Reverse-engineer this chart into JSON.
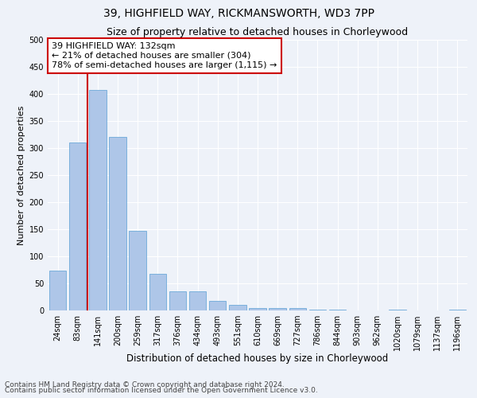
{
  "title1": "39, HIGHFIELD WAY, RICKMANSWORTH, WD3 7PP",
  "title2": "Size of property relative to detached houses in Chorleywood",
  "xlabel": "Distribution of detached houses by size in Chorleywood",
  "ylabel": "Number of detached properties",
  "bar_labels": [
    "24sqm",
    "83sqm",
    "141sqm",
    "200sqm",
    "259sqm",
    "317sqm",
    "376sqm",
    "434sqm",
    "493sqm",
    "551sqm",
    "610sqm",
    "669sqm",
    "727sqm",
    "786sqm",
    "844sqm",
    "903sqm",
    "962sqm",
    "1020sqm",
    "1079sqm",
    "1137sqm",
    "1196sqm"
  ],
  "bar_values": [
    73,
    310,
    407,
    320,
    147,
    68,
    35,
    35,
    18,
    11,
    5,
    5,
    5,
    1,
    1,
    0,
    0,
    2,
    0,
    0,
    2
  ],
  "bar_color": "#aec6e8",
  "bar_edge_color": "#5a9fd4",
  "property_line_x": 2,
  "annotation_text": "39 HIGHFIELD WAY: 132sqm\n← 21% of detached houses are smaller (304)\n78% of semi-detached houses are larger (1,115) →",
  "annotation_box_color": "#ffffff",
  "annotation_box_edge": "#cc0000",
  "vline_color": "#cc0000",
  "ylim": [
    0,
    500
  ],
  "yticks": [
    0,
    50,
    100,
    150,
    200,
    250,
    300,
    350,
    400,
    450,
    500
  ],
  "footer1": "Contains HM Land Registry data © Crown copyright and database right 2024.",
  "footer2": "Contains public sector information licensed under the Open Government Licence v3.0.",
  "bg_color": "#eef2f9",
  "grid_color": "#ffffff",
  "title1_fontsize": 10,
  "title2_fontsize": 9,
  "xlabel_fontsize": 8.5,
  "ylabel_fontsize": 8,
  "tick_fontsize": 7,
  "annotation_fontsize": 8,
  "footer_fontsize": 6.5
}
